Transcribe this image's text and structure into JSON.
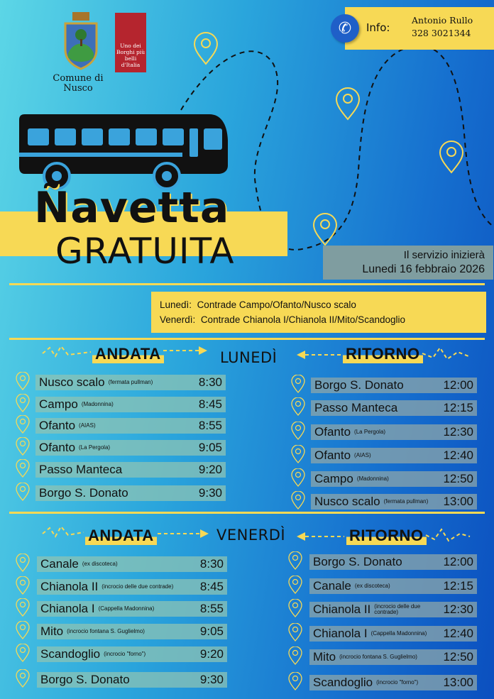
{
  "header": {
    "municipality": "Comune di Nusco",
    "borghi_logo_text": "Uno dei Borghi più belli d'Italia",
    "info_label": "Info:",
    "contact_name": "Antonio Rullo",
    "contact_phone": "328 3021344",
    "icons": [
      "coat-of-arms",
      "borghi-logo",
      "phone-icon",
      "bus-icon",
      "location-pin-icon"
    ]
  },
  "title": {
    "line1": "Ñavetta",
    "line2": "GRATUITA"
  },
  "start": {
    "line1": "Il servizio inizierà",
    "line2": "Lunedi 16 febbraio 2026"
  },
  "schedule_days": [
    {
      "day": "Lunedì:",
      "areas": "Contrade Campo/Ofanto/Nusco scalo"
    },
    {
      "day": "Venerdì:",
      "areas": "Contrade Chianola I/Chianola II/Mito/Scandoglio"
    }
  ],
  "colors": {
    "accent": "#f7d955",
    "bg_light": "#5cd6e6",
    "bg_dark": "#0b4fbf"
  },
  "monday": {
    "day": "LUNEDÌ",
    "outbound_label": "ANDATA",
    "return_label": "RITORNO",
    "outbound": [
      {
        "name": "Nusco scalo",
        "note": "(fermata pullman)",
        "time": "8:30"
      },
      {
        "name": "Campo",
        "note": "(Madonnina)",
        "time": "8:45"
      },
      {
        "name": "Ofanto",
        "note": "(AIAS)",
        "time": "8:55"
      },
      {
        "name": "Ofanto",
        "note": "(La Pergola)",
        "time": "9:05"
      },
      {
        "name": "Passo Manteca",
        "note": "",
        "time": "9:20"
      },
      {
        "name": "Borgo S. Donato",
        "note": "",
        "time": "9:30"
      }
    ],
    "return": [
      {
        "name": "Borgo S. Donato",
        "note": "",
        "time": "12:00"
      },
      {
        "name": "Passo Manteca",
        "note": "",
        "time": "12:15"
      },
      {
        "name": "Ofanto",
        "note": "(La Pergola)",
        "time": "12:30"
      },
      {
        "name": "Ofanto",
        "note": "(AIAS)",
        "time": "12:40"
      },
      {
        "name": "Campo",
        "note": "(Madonnina)",
        "time": "12:50"
      },
      {
        "name": "Nusco scalo",
        "note": "(fermata pullman)",
        "time": "13:00"
      }
    ]
  },
  "friday": {
    "day": "VENERDÌ",
    "outbound_label": "ANDATA",
    "return_label": "RITORNO",
    "outbound": [
      {
        "name": "Canale",
        "note": "(ex discoteca)",
        "time": "8:30"
      },
      {
        "name": "Chianola II",
        "note": "(incrocio delle due contrade)",
        "time": "8:45"
      },
      {
        "name": "Chianola I",
        "note": "(Cappella Madonnina)",
        "time": "8:55"
      },
      {
        "name": "Mito",
        "note": "(incrocio fontana S. Guglielmo)",
        "time": "9:05"
      },
      {
        "name": "Scandoglio",
        "note": "(incrocio \"forno\")",
        "time": "9:20"
      },
      {
        "name": "Borgo S. Donato",
        "note": "",
        "time": "9:30"
      }
    ],
    "return": [
      {
        "name": "Borgo S. Donato",
        "note": "",
        "time": "12:00"
      },
      {
        "name": "Canale",
        "note": "(ex discoteca)",
        "time": "12:15"
      },
      {
        "name": "Chianola II",
        "note": "(incrocio delle due contrade)",
        "time": "12:30"
      },
      {
        "name": "Chianola I",
        "note": "(Cappella Madonnina)",
        "time": "12:40"
      },
      {
        "name": "Mito",
        "note": "(incrocio fontana S. Guglielmo)",
        "time": "12:50"
      },
      {
        "name": "Scandoglio",
        "note": "(incrocio \"forno\")",
        "time": "13:00"
      }
    ]
  }
}
